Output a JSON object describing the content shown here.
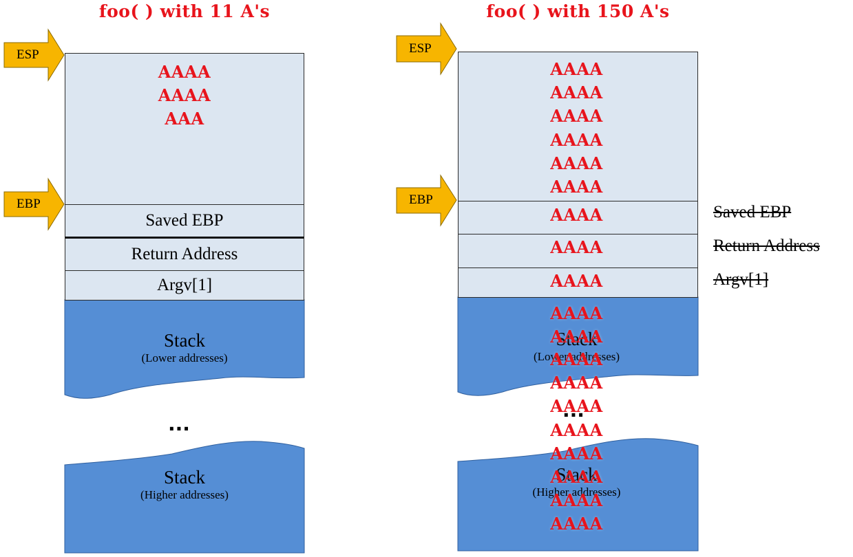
{
  "left": {
    "title": "foo( ) with 11 A's",
    "buffer_lines": [
      "AAAA",
      "AAAA",
      "AAA"
    ],
    "saved_ebp": "Saved EBP",
    "return_address": "Return Address",
    "argv": "Argv[1]",
    "stack_lower": {
      "label": "Stack",
      "sub": "(Lower addresses)"
    },
    "ellipsis": "...",
    "stack_higher": {
      "label": "Stack",
      "sub": "(Higher addresses)"
    }
  },
  "right": {
    "title": "foo( ) with 150 A's",
    "buffer_lines": [
      "AAAA",
      "AAAA",
      "AAAA",
      "AAAA",
      "AAAA",
      "AAAA"
    ],
    "saved_ebp_value": "AAAA",
    "return_address_value": "AAAA",
    "argv_value": "AAAA",
    "overflow_lines": [
      "AAAA",
      "AAAA",
      "AAAA",
      "AAAA",
      "AAAA",
      "AAAA",
      "AAAA",
      "AAAA",
      "AAAA",
      "AAAA"
    ],
    "stack_lower": {
      "label": "Stack",
      "sub": "(Lower addresses)"
    },
    "ellipsis": "...",
    "stack_higher": {
      "label": "Stack",
      "sub": "(Higher addresses)"
    },
    "struck_labels": [
      "Saved EBP",
      "Return Address",
      "Argv[1]"
    ]
  },
  "pointers": {
    "esp": "ESP",
    "ebp": "EBP"
  },
  "colors": {
    "accent": "#e8141c",
    "buffer": "#dce6f1",
    "stack": "#558ed5",
    "arrow": "#f7b500"
  }
}
